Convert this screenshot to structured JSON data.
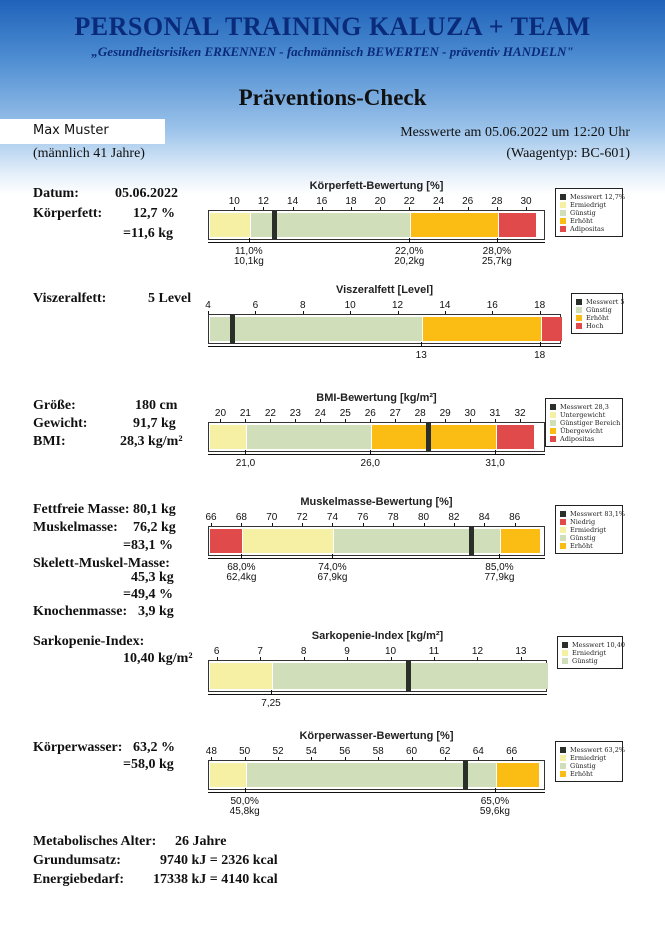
{
  "header": {
    "title": "PERSONAL TRAINING KALUZA + TEAM",
    "subtitle": "„Gesundheitsrisiken ERKENNEN - fachmännisch BEWERTEN - präventiv HANDELN\""
  },
  "page_title": "Präventions-Check",
  "person": {
    "name": "Max Muster",
    "info": "(männlich 41 Jahre)"
  },
  "measurement": {
    "datetime": "Messwerte am 05.06.2022 um 12:20 Uhr",
    "scale_type": "(Waagentyp: BC-601)"
  },
  "colors": {
    "red": "#e04a4a",
    "light_yellow": "#f6f0a4",
    "green": "#d0deba",
    "orange": "#fbbd13",
    "marker": "#2a2f2a"
  },
  "values": {
    "datum_label": "Datum:",
    "datum": "05.06.2022",
    "koerperfett_label": "Körperfett:",
    "koerperfett_pct": "12,7 %",
    "koerperfett_kg": "=11,6 kg",
    "viszeral_label": "Viszeralfett:",
    "viszeral": "5 Level",
    "groesse_label": "Größe:",
    "groesse": "180 cm",
    "gewicht_label": "Gewicht:",
    "gewicht": "91,7 kg",
    "bmi_label": "BMI:",
    "bmi": "28,3 kg/m²",
    "fettfrei_label": "Fettfreie Masse:",
    "fettfrei": "80,1 kg",
    "muskel_label": "Muskelmasse:",
    "muskel_kg": "76,2 kg",
    "muskel_pct": "=83,1 %",
    "skelett_label": "Skelett-Muskel-Masse:",
    "skelett_kg": "45,3 kg",
    "skelett_pct": "=49,4 %",
    "knochen_label": "Knochenmasse:",
    "knochen": "3,9 kg",
    "sarko_label": "Sarkopenie-Index:",
    "sarko": "10,40 kg/m²",
    "wasser_label": "Körperwasser:",
    "wasser_pct": "63,2 %",
    "wasser_kg": "=58,0 kg",
    "metab_label": "Metabolisches Alter:",
    "metab": "26 Jahre",
    "grund_label": "Grundumsatz:",
    "grund": "9740 kJ = 2326 kcal",
    "energie_label": "Energiebedarf:",
    "energie": "17338 kJ = 4140 kcal"
  },
  "chart_data": [
    {
      "id": "koerperfett",
      "type": "bar",
      "title": "Körperfett-Bewertung [%]",
      "xlim": [
        8.2,
        31.3
      ],
      "ticks": [
        10,
        12,
        14,
        16,
        18,
        20,
        22,
        24,
        26,
        28,
        30
      ],
      "zones": [
        {
          "from": 8.2,
          "to": 11.0,
          "color": "#f6f0a4"
        },
        {
          "from": 11.0,
          "to": 22.0,
          "color": "#d0deba"
        },
        {
          "from": 22.0,
          "to": 28.0,
          "color": "#fbbd13"
        },
        {
          "from": 28.0,
          "to": 30.6,
          "color": "#e04a4a"
        }
      ],
      "value": 12.7,
      "refs": [
        {
          "x": 11.0,
          "l1": "11,0%",
          "l2": "10,1kg"
        },
        {
          "x": 22.0,
          "l1": "22,0%",
          "l2": "20,2kg"
        },
        {
          "x": 28.0,
          "l1": "28,0%",
          "l2": "25,7kg"
        }
      ],
      "legend": [
        {
          "color": "#2a2f2a",
          "label": "Messwert 12,7%"
        },
        {
          "color": "#f6f0a4",
          "label": "Ermiedrigt"
        },
        {
          "color": "#d0deba",
          "label": "Günstig"
        },
        {
          "color": "#fbbd13",
          "label": "Erhöht"
        },
        {
          "color": "#e04a4a",
          "label": "Adipositas"
        }
      ]
    },
    {
      "id": "viszeral",
      "type": "bar",
      "title": "Viszeralfett [Level]",
      "xlim": [
        4,
        18.9
      ],
      "ticks": [
        4,
        6,
        8,
        10,
        12,
        14,
        16,
        18
      ],
      "zones": [
        {
          "from": 4,
          "to": 13,
          "color": "#d0deba"
        },
        {
          "from": 13,
          "to": 18,
          "color": "#fbbd13"
        },
        {
          "from": 18,
          "to": 18.9,
          "color": "#e04a4a"
        }
      ],
      "value": 5,
      "refs": [
        {
          "x": 13,
          "l1": "13",
          "l2": ""
        },
        {
          "x": 18,
          "l1": "18",
          "l2": ""
        }
      ],
      "legend": [
        {
          "color": "#2a2f2a",
          "label": "Messwert 5"
        },
        {
          "color": "#d0deba",
          "label": "Günstig"
        },
        {
          "color": "#fbbd13",
          "label": "Erhöht"
        },
        {
          "color": "#e04a4a",
          "label": "Hoch"
        }
      ]
    },
    {
      "id": "bmi",
      "type": "bar",
      "title": "BMI-Bewertung [kg/m²]",
      "xlim": [
        19.5,
        33.0
      ],
      "ticks": [
        20,
        21,
        22,
        23,
        24,
        25,
        26,
        27,
        28,
        29,
        30,
        31,
        32
      ],
      "zones": [
        {
          "from": 19.5,
          "to": 21.0,
          "color": "#f6f0a4"
        },
        {
          "from": 21.0,
          "to": 26.0,
          "color": "#d0deba"
        },
        {
          "from": 26.0,
          "to": 31.0,
          "color": "#fbbd13"
        },
        {
          "from": 31.0,
          "to": 32.5,
          "color": "#e04a4a"
        }
      ],
      "value": 28.3,
      "refs": [
        {
          "x": 21.0,
          "l1": "21,0",
          "l2": ""
        },
        {
          "x": 26.0,
          "l1": "26,0",
          "l2": ""
        },
        {
          "x": 31.0,
          "l1": "31,0",
          "l2": ""
        }
      ],
      "legend": [
        {
          "color": "#2a2f2a",
          "label": "Messwert 28,3"
        },
        {
          "color": "#f6f0a4",
          "label": "Untergewicht"
        },
        {
          "color": "#d0deba",
          "label": "Günstiger Bereich"
        },
        {
          "color": "#fbbd13",
          "label": "Übergewicht"
        },
        {
          "color": "#e04a4a",
          "label": "Adipositas"
        }
      ]
    },
    {
      "id": "muskel",
      "type": "bar",
      "title": "Muskelmasse-Bewertung [%]",
      "xlim": [
        65.8,
        88.0
      ],
      "ticks": [
        66,
        68,
        70,
        72,
        74,
        76,
        78,
        80,
        82,
        84,
        86
      ],
      "zones": [
        {
          "from": 65.8,
          "to": 68.0,
          "color": "#e04a4a"
        },
        {
          "from": 68.0,
          "to": 74.0,
          "color": "#f6f0a4"
        },
        {
          "from": 74.0,
          "to": 85.0,
          "color": "#d0deba"
        },
        {
          "from": 85.0,
          "to": 87.6,
          "color": "#fbbd13"
        }
      ],
      "value": 83.1,
      "refs": [
        {
          "x": 68.0,
          "l1": "68,0%",
          "l2": "62,4kg"
        },
        {
          "x": 74.0,
          "l1": "74,0%",
          "l2": "67,9kg"
        },
        {
          "x": 85.0,
          "l1": "85,0%",
          "l2": "77,9kg"
        }
      ],
      "legend": [
        {
          "color": "#2a2f2a",
          "label": "Messwert 83,1%"
        },
        {
          "color": "#e04a4a",
          "label": "Niedrig"
        },
        {
          "color": "#f6f0a4",
          "label": "Ermiedrigt"
        },
        {
          "color": "#d0deba",
          "label": "Günstig"
        },
        {
          "color": "#fbbd13",
          "label": "Erhöht"
        }
      ]
    },
    {
      "id": "sarko",
      "type": "bar",
      "title": "Sarkopenie-Index [kg/m²]",
      "xlim": [
        5.8,
        13.6
      ],
      "ticks": [
        6,
        7,
        8,
        9,
        10,
        11,
        12,
        13
      ],
      "zones": [
        {
          "from": 5.8,
          "to": 7.25,
          "color": "#f6f0a4"
        },
        {
          "from": 7.25,
          "to": 13.6,
          "color": "#d0deba"
        }
      ],
      "value": 10.4,
      "refs": [
        {
          "x": 7.25,
          "l1": "7,25",
          "l2": ""
        }
      ],
      "legend": [
        {
          "color": "#2a2f2a",
          "label": "Messwert 10,40"
        },
        {
          "color": "#f6f0a4",
          "label": "Erniedrigt"
        },
        {
          "color": "#d0deba",
          "label": "Günstig"
        }
      ]
    },
    {
      "id": "wasser",
      "type": "bar",
      "title": "Körperwasser-Bewertung [%]",
      "xlim": [
        47.8,
        68.0
      ],
      "ticks": [
        48,
        50,
        52,
        54,
        56,
        58,
        60,
        62,
        64,
        66
      ],
      "zones": [
        {
          "from": 47.8,
          "to": 50.0,
          "color": "#f6f0a4"
        },
        {
          "from": 50.0,
          "to": 65.0,
          "color": "#d0deba"
        },
        {
          "from": 65.0,
          "to": 67.6,
          "color": "#fbbd13"
        }
      ],
      "value": 63.2,
      "refs": [
        {
          "x": 50.0,
          "l1": "50,0%",
          "l2": "45,8kg"
        },
        {
          "x": 65.0,
          "l1": "65,0%",
          "l2": "59,6kg"
        }
      ],
      "legend": [
        {
          "color": "#2a2f2a",
          "label": "Messwert 63,2%"
        },
        {
          "color": "#f6f0a4",
          "label": "Ermiedrigt"
        },
        {
          "color": "#d0deba",
          "label": "Günstig"
        },
        {
          "color": "#fbbd13",
          "label": "Erhöht"
        }
      ]
    }
  ]
}
